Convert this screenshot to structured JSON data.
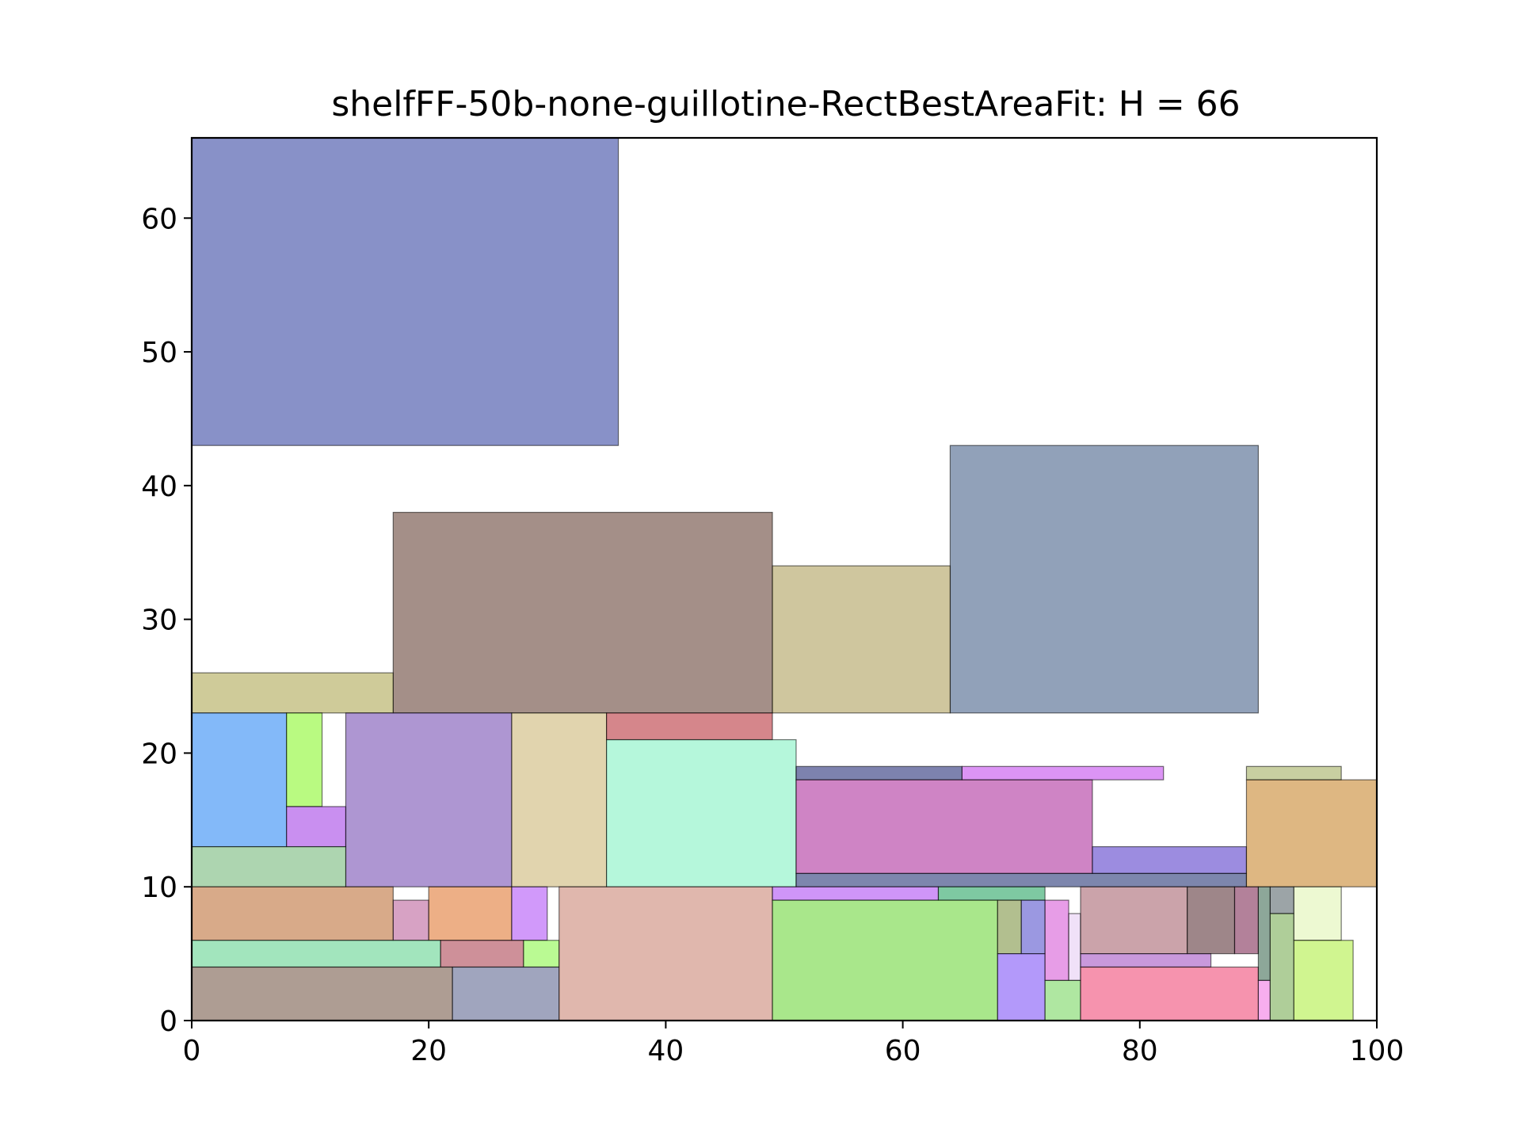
{
  "chart_data": {
    "type": "rectangle-packing",
    "title": "shelfFF-50b-none-guillotine-RectBestAreaFit: H = 66",
    "xlim": [
      0,
      100
    ],
    "ylim": [
      0,
      66
    ],
    "xticks": [
      0,
      20,
      40,
      60,
      80,
      100
    ],
    "yticks": [
      0,
      10,
      20,
      30,
      40,
      50,
      60
    ],
    "grid": false,
    "rects": [
      {
        "x": 0,
        "y": 43,
        "w": 36,
        "h": 23,
        "color": "#27379a"
      },
      {
        "x": 64,
        "y": 23,
        "w": 26,
        "h": 20,
        "color": "#36547f"
      },
      {
        "x": 17,
        "y": 23,
        "w": 32,
        "h": 15,
        "color": "#5a3327"
      },
      {
        "x": 49,
        "y": 23,
        "w": 15,
        "h": 11,
        "color": "#a8984f"
      },
      {
        "x": 0,
        "y": 23,
        "w": 17,
        "h": 3,
        "color": "#a8a045"
      },
      {
        "x": 0,
        "y": 13,
        "w": 8,
        "h": 10,
        "color": "#1d7ff4"
      },
      {
        "x": 8,
        "y": 16,
        "w": 3,
        "h": 7,
        "color": "#7ff51a"
      },
      {
        "x": 8,
        "y": 13,
        "w": 5,
        "h": 3,
        "color": "#9c33e3"
      },
      {
        "x": 13,
        "y": 10,
        "w": 14,
        "h": 13,
        "color": "#6c3fad"
      },
      {
        "x": 27,
        "y": 10,
        "w": 8,
        "h": 13,
        "color": "#c9b06b"
      },
      {
        "x": 35,
        "y": 21,
        "w": 14,
        "h": 2,
        "color": "#b3222c"
      },
      {
        "x": 35,
        "y": 10,
        "w": 16,
        "h": 11,
        "color": "#78f0bd"
      },
      {
        "x": 0,
        "y": 10,
        "w": 13,
        "h": 3,
        "color": "#6ab26f"
      },
      {
        "x": 51,
        "y": 18,
        "w": 14,
        "h": 1,
        "color": "#121b6c"
      },
      {
        "x": 65,
        "y": 18,
        "w": 17,
        "h": 1,
        "color": "#c03ced"
      },
      {
        "x": 51,
        "y": 11,
        "w": 25,
        "h": 7,
        "color": "#a81f95"
      },
      {
        "x": 76,
        "y": 11,
        "w": 13,
        "h": 2,
        "color": "#4a2ec6"
      },
      {
        "x": 51,
        "y": 10,
        "w": 38,
        "h": 1,
        "color": "#12226a"
      },
      {
        "x": 89,
        "y": 18,
        "w": 8,
        "h": 1,
        "color": "#9aa853"
      },
      {
        "x": 89,
        "y": 10,
        "w": 11,
        "h": 8,
        "color": "#c27b1c"
      },
      {
        "x": 0,
        "y": 6,
        "w": 17,
        "h": 4,
        "color": "#b86528"
      },
      {
        "x": 17,
        "y": 6,
        "w": 3,
        "h": 3,
        "color": "#b75594"
      },
      {
        "x": 20,
        "y": 6,
        "w": 7,
        "h": 4,
        "color": "#de6e23"
      },
      {
        "x": 27,
        "y": 6,
        "w": 3,
        "h": 4,
        "color": "#ab46f5"
      },
      {
        "x": 0,
        "y": 4,
        "w": 21,
        "h": 2,
        "color": "#56d087"
      },
      {
        "x": 21,
        "y": 4,
        "w": 7,
        "h": 2,
        "color": "#a53445"
      },
      {
        "x": 28,
        "y": 4,
        "w": 3,
        "h": 2,
        "color": "#81f53a"
      },
      {
        "x": 0,
        "y": 0,
        "w": 22,
        "h": 4,
        "color": "#6b4d3b"
      },
      {
        "x": 22,
        "y": 0,
        "w": 9,
        "h": 4,
        "color": "#525b89"
      },
      {
        "x": 31,
        "y": 0,
        "w": 18,
        "h": 10,
        "color": "#c77b6a"
      },
      {
        "x": 49,
        "y": 9,
        "w": 14,
        "h": 1,
        "color": "#a73ef2"
      },
      {
        "x": 63,
        "y": 9,
        "w": 9,
        "h": 1,
        "color": "#149c56"
      },
      {
        "x": 49,
        "y": 0,
        "w": 19,
        "h": 9,
        "color": "#62d42c"
      },
      {
        "x": 68,
        "y": 5,
        "w": 2,
        "h": 4,
        "color": "#738a33"
      },
      {
        "x": 70,
        "y": 5,
        "w": 2,
        "h": 4,
        "color": "#4943c8"
      },
      {
        "x": 68,
        "y": 0,
        "w": 4,
        "h": 5,
        "color": "#7446f5"
      },
      {
        "x": 72,
        "y": 3,
        "w": 2,
        "h": 6,
        "color": "#d34dd4"
      },
      {
        "x": 74,
        "y": 3,
        "w": 1,
        "h": 5,
        "color": "#e4c9f2"
      },
      {
        "x": 72,
        "y": 0,
        "w": 3,
        "h": 3,
        "color": "#6dd453"
      },
      {
        "x": 75,
        "y": 5,
        "w": 9,
        "h": 5,
        "color": "#a15764"
      },
      {
        "x": 84,
        "y": 5,
        "w": 4,
        "h": 5,
        "color": "#4f2228"
      },
      {
        "x": 88,
        "y": 5,
        "w": 2,
        "h": 5,
        "color": "#751a47"
      },
      {
        "x": 75,
        "y": 4,
        "w": 11,
        "h": 1,
        "color": "#9c46c0"
      },
      {
        "x": 75,
        "y": 0,
        "w": 15,
        "h": 4,
        "color": "#ee3a6b"
      },
      {
        "x": 90,
        "y": 3,
        "w": 1,
        "h": 7,
        "color": "#2f5f45"
      },
      {
        "x": 91,
        "y": 8,
        "w": 2,
        "h": 2,
        "color": "#4a5a5e"
      },
      {
        "x": 90,
        "y": 0,
        "w": 1,
        "h": 3,
        "color": "#f06ce0"
      },
      {
        "x": 91,
        "y": 0,
        "w": 2,
        "h": 8,
        "color": "#6ea546"
      },
      {
        "x": 93,
        "y": 6,
        "w": 4,
        "h": 4,
        "color": "#dff4ad"
      },
      {
        "x": 93,
        "y": 0,
        "w": 5,
        "h": 6,
        "color": "#a9ec35"
      }
    ]
  }
}
